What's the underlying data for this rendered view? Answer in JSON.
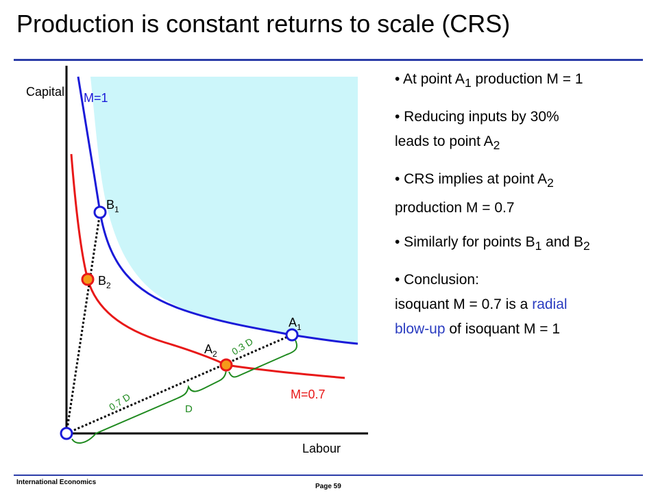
{
  "slide": {
    "title": "Production is constant returns to scale (CRS)",
    "footer": "International Economics",
    "page": "Page 59"
  },
  "diagram": {
    "axis_y_label": "Capital",
    "axis_x_label": "Labour",
    "isoquant_m1_label": "M=1",
    "isoquant_m07_label": "M=0.7",
    "point_a1": {
      "base": "A",
      "sub": "1"
    },
    "point_a2": {
      "base": "A",
      "sub": "2"
    },
    "point_b1": {
      "base": "B",
      "sub": "1"
    },
    "point_b2": {
      "base": "B",
      "sub": "2"
    },
    "brace_d": "D",
    "brace_07d": "0.7 D",
    "brace_03d": "0.3 D",
    "colors": {
      "m1": "#1a1ad8",
      "m07": "#e81818",
      "region": "#ccf6fa",
      "brace": "#1f8a1f",
      "point_m07": "#f59a1a"
    }
  },
  "bullets": {
    "b1": {
      "pre": "• At point A",
      "sub": "1",
      "post": " production M = 1"
    },
    "b2": {
      "line1": "• Reducing inputs by 30%",
      "line2_pre": "leads to point A",
      "line2_sub": "2"
    },
    "b3": {
      "line1_pre": "• CRS implies at point A",
      "line1_sub": "2",
      "line2": "production M = 0.7"
    },
    "b4": {
      "pre": "• Similarly for points B",
      "sub1": "1",
      "mid": " and B",
      "sub2": "2"
    },
    "b5": {
      "line1": "• Conclusion:",
      "line2_pre": "isoquant M = 0.7 is a ",
      "line2_hl": "radial",
      "line3_hl": "blow-up",
      "line3_post": " of isoquant M = 1"
    }
  }
}
